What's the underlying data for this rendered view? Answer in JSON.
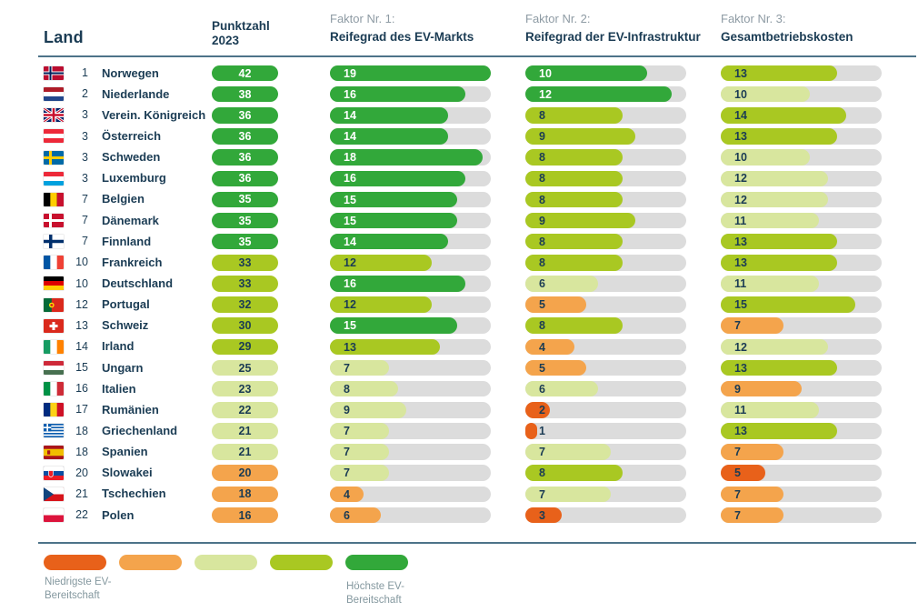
{
  "header": {
    "land": "Land",
    "score_line1": "Punktzahl",
    "score_line2": "2023",
    "factors": [
      {
        "kicker": "Faktor Nr. 1:",
        "title": "Reifegrad des EV-Markts"
      },
      {
        "kicker": "Faktor Nr. 2:",
        "title": "Reifegrad der EV-Infrastruktur"
      },
      {
        "kicker": "Faktor Nr. 3:",
        "title": "Gesamtbetriebskosten"
      }
    ]
  },
  "colors": {
    "scale": [
      "#e8611a",
      "#f4a44c",
      "#d8e69e",
      "#a9c822",
      "#32a83a"
    ],
    "track": "#dcdcdc",
    "navy_text": "#1b3c54",
    "rule": "#4d7389"
  },
  "legend": {
    "low_line1": "Niedrigste EV-",
    "low_line2": "Bereitschaft",
    "high_line1": "Höchste EV-",
    "high_line2": "Bereitschaft"
  },
  "rows": [
    {
      "rank": 1,
      "country": "Norwegen",
      "flag": "no",
      "score": 42,
      "score_level": 5,
      "f1": {
        "v": 19,
        "level": 5
      },
      "f2": {
        "v": 10,
        "level": 5
      },
      "f3": {
        "v": 13,
        "level": 4
      }
    },
    {
      "rank": 2,
      "country": "Niederlande",
      "flag": "nl",
      "score": 38,
      "score_level": 5,
      "f1": {
        "v": 16,
        "level": 5
      },
      "f2": {
        "v": 12,
        "level": 5
      },
      "f3": {
        "v": 10,
        "level": 3
      }
    },
    {
      "rank": 3,
      "country": "Verein. Königreich",
      "flag": "gb",
      "score": 36,
      "score_level": 5,
      "f1": {
        "v": 14,
        "level": 5
      },
      "f2": {
        "v": 8,
        "level": 4
      },
      "f3": {
        "v": 14,
        "level": 4
      }
    },
    {
      "rank": 3,
      "country": "Österreich",
      "flag": "at",
      "score": 36,
      "score_level": 5,
      "f1": {
        "v": 14,
        "level": 5
      },
      "f2": {
        "v": 9,
        "level": 4
      },
      "f3": {
        "v": 13,
        "level": 4
      }
    },
    {
      "rank": 3,
      "country": "Schweden",
      "flag": "se",
      "score": 36,
      "score_level": 5,
      "f1": {
        "v": 18,
        "level": 5
      },
      "f2": {
        "v": 8,
        "level": 4
      },
      "f3": {
        "v": 10,
        "level": 3
      }
    },
    {
      "rank": 3,
      "country": "Luxemburg",
      "flag": "lu",
      "score": 36,
      "score_level": 5,
      "f1": {
        "v": 16,
        "level": 5
      },
      "f2": {
        "v": 8,
        "level": 4
      },
      "f3": {
        "v": 12,
        "level": 3
      }
    },
    {
      "rank": 7,
      "country": "Belgien",
      "flag": "be",
      "score": 35,
      "score_level": 5,
      "f1": {
        "v": 15,
        "level": 5
      },
      "f2": {
        "v": 8,
        "level": 4
      },
      "f3": {
        "v": 12,
        "level": 3
      }
    },
    {
      "rank": 7,
      "country": "Dänemark",
      "flag": "dk",
      "score": 35,
      "score_level": 5,
      "f1": {
        "v": 15,
        "level": 5
      },
      "f2": {
        "v": 9,
        "level": 4
      },
      "f3": {
        "v": 11,
        "level": 3
      }
    },
    {
      "rank": 7,
      "country": "Finnland",
      "flag": "fi",
      "score": 35,
      "score_level": 5,
      "f1": {
        "v": 14,
        "level": 5
      },
      "f2": {
        "v": 8,
        "level": 4
      },
      "f3": {
        "v": 13,
        "level": 4
      }
    },
    {
      "rank": 10,
      "country": "Frankreich",
      "flag": "fr",
      "score": 33,
      "score_level": 4,
      "f1": {
        "v": 12,
        "level": 4
      },
      "f2": {
        "v": 8,
        "level": 4
      },
      "f3": {
        "v": 13,
        "level": 4
      }
    },
    {
      "rank": 10,
      "country": "Deutschland",
      "flag": "de",
      "score": 33,
      "score_level": 4,
      "f1": {
        "v": 16,
        "level": 5
      },
      "f2": {
        "v": 6,
        "level": 3
      },
      "f3": {
        "v": 11,
        "level": 3
      }
    },
    {
      "rank": 12,
      "country": "Portugal",
      "flag": "pt",
      "score": 32,
      "score_level": 4,
      "f1": {
        "v": 12,
        "level": 4
      },
      "f2": {
        "v": 5,
        "level": 2
      },
      "f3": {
        "v": 15,
        "level": 4
      }
    },
    {
      "rank": 13,
      "country": "Schweiz",
      "flag": "ch",
      "score": 30,
      "score_level": 4,
      "f1": {
        "v": 15,
        "level": 5
      },
      "f2": {
        "v": 8,
        "level": 4
      },
      "f3": {
        "v": 7,
        "level": 2
      }
    },
    {
      "rank": 14,
      "country": "Irland",
      "flag": "ie",
      "score": 29,
      "score_level": 4,
      "f1": {
        "v": 13,
        "level": 4
      },
      "f2": {
        "v": 4,
        "level": 2
      },
      "f3": {
        "v": 12,
        "level": 3
      }
    },
    {
      "rank": 15,
      "country": "Ungarn",
      "flag": "hu",
      "score": 25,
      "score_level": 3,
      "f1": {
        "v": 7,
        "level": 3
      },
      "f2": {
        "v": 5,
        "level": 2
      },
      "f3": {
        "v": 13,
        "level": 4
      }
    },
    {
      "rank": 16,
      "country": "Italien",
      "flag": "it",
      "score": 23,
      "score_level": 3,
      "f1": {
        "v": 8,
        "level": 3
      },
      "f2": {
        "v": 6,
        "level": 3
      },
      "f3": {
        "v": 9,
        "level": 2
      }
    },
    {
      "rank": 17,
      "country": "Rumänien",
      "flag": "ro",
      "score": 22,
      "score_level": 3,
      "f1": {
        "v": 9,
        "level": 3
      },
      "f2": {
        "v": 2,
        "level": 1
      },
      "f3": {
        "v": 11,
        "level": 3
      }
    },
    {
      "rank": 18,
      "country": "Griechenland",
      "flag": "gr",
      "score": 21,
      "score_level": 3,
      "f1": {
        "v": 7,
        "level": 3
      },
      "f2": {
        "v": 1,
        "level": 1
      },
      "f3": {
        "v": 13,
        "level": 4
      }
    },
    {
      "rank": 18,
      "country": "Spanien",
      "flag": "es",
      "score": 21,
      "score_level": 3,
      "f1": {
        "v": 7,
        "level": 3
      },
      "f2": {
        "v": 7,
        "level": 3
      },
      "f3": {
        "v": 7,
        "level": 2
      }
    },
    {
      "rank": 20,
      "country": "Slowakei",
      "flag": "sk",
      "score": 20,
      "score_level": 2,
      "f1": {
        "v": 7,
        "level": 3
      },
      "f2": {
        "v": 8,
        "level": 4
      },
      "f3": {
        "v": 5,
        "level": 1
      }
    },
    {
      "rank": 21,
      "country": "Tschechien",
      "flag": "cz",
      "score": 18,
      "score_level": 2,
      "f1": {
        "v": 4,
        "level": 2
      },
      "f2": {
        "v": 7,
        "level": 3
      },
      "f3": {
        "v": 7,
        "level": 2
      }
    },
    {
      "rank": 22,
      "country": "Polen",
      "flag": "pl",
      "score": 16,
      "score_level": 2,
      "f1": {
        "v": 6,
        "level": 2
      },
      "f2": {
        "v": 3,
        "level": 1
      },
      "f3": {
        "v": 7,
        "level": 2
      }
    }
  ],
  "chart_data": {
    "type": "bar",
    "title": "",
    "categories": [
      "Norwegen",
      "Niederlande",
      "Verein. Königreich",
      "Österreich",
      "Schweden",
      "Luxemburg",
      "Belgien",
      "Dänemark",
      "Finnland",
      "Frankreich",
      "Deutschland",
      "Portugal",
      "Schweiz",
      "Irland",
      "Ungarn",
      "Italien",
      "Rumänien",
      "Griechenland",
      "Spanien",
      "Slowakei",
      "Tschechien",
      "Polen"
    ],
    "ranks": [
      1,
      2,
      3,
      3,
      3,
      3,
      7,
      7,
      7,
      10,
      10,
      12,
      13,
      14,
      15,
      16,
      17,
      18,
      18,
      20,
      21,
      22
    ],
    "series": [
      {
        "name": "Punktzahl 2023",
        "values": [
          42,
          38,
          36,
          36,
          36,
          36,
          35,
          35,
          35,
          33,
          33,
          32,
          30,
          29,
          25,
          23,
          22,
          21,
          21,
          20,
          18,
          16
        ]
      },
      {
        "name": "Faktor Nr. 1: Reifegrad des EV-Markts",
        "values": [
          19,
          16,
          14,
          14,
          18,
          16,
          15,
          15,
          14,
          12,
          16,
          12,
          15,
          13,
          7,
          8,
          9,
          7,
          7,
          7,
          4,
          6
        ]
      },
      {
        "name": "Faktor Nr. 2: Reifegrad der EV-Infrastruktur",
        "values": [
          10,
          12,
          8,
          9,
          8,
          8,
          8,
          9,
          8,
          8,
          6,
          5,
          8,
          4,
          5,
          6,
          2,
          1,
          7,
          8,
          7,
          3
        ]
      },
      {
        "name": "Faktor Nr. 3: Gesamtbetriebskosten",
        "values": [
          13,
          10,
          14,
          13,
          10,
          12,
          12,
          11,
          13,
          13,
          11,
          15,
          7,
          12,
          13,
          9,
          11,
          13,
          7,
          5,
          7,
          7
        ]
      }
    ],
    "axis_max": [
      19,
      13.2,
      18
    ],
    "legend_labels": [
      "Niedrigste EV-Bereitschaft",
      "Höchste EV-Bereitschaft"
    ],
    "legend_position": "bottom-left",
    "grid": false
  }
}
